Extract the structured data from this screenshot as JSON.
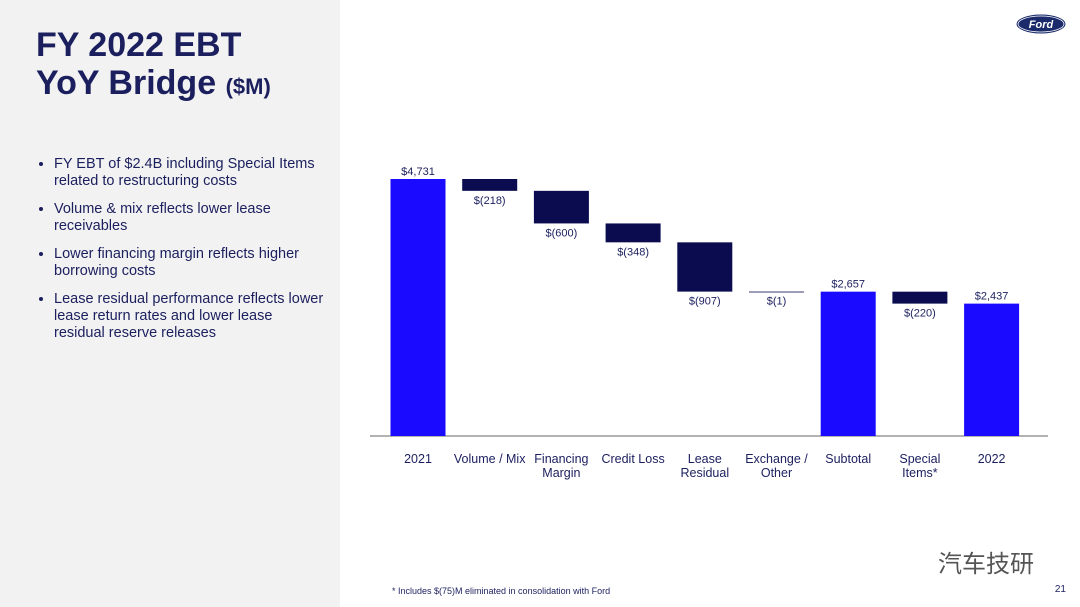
{
  "header": {
    "title": "FY 2022 EBT YoY Bridge",
    "title_unit": "($M)",
    "logo": "Ford",
    "page_number": "21"
  },
  "bullets": [
    "FY EBT of $2.4B including Special Items related to restructuring costs",
    "Volume & mix reflects lower lease receivables",
    "Lower financing margin reflects higher borrowing costs",
    "Lease residual performance reflects lower lease return rates and lower lease residual reserve releases"
  ],
  "chart_data": {
    "type": "waterfall",
    "categories": [
      "2021",
      "Volume / Mix",
      "Financing Margin",
      "Credit Loss",
      "Lease Residual",
      "Exchange / Other",
      "Subtotal",
      "Special Items*",
      "2022"
    ],
    "values": [
      4731,
      -218,
      -600,
      -348,
      -907,
      -1,
      2657,
      -220,
      2437
    ],
    "value_labels": [
      "$4,731",
      "$(218)",
      "$(600)",
      "$(348)",
      "$(907)",
      "$(1)",
      "$2,657",
      "$(220)",
      "$2,437"
    ],
    "is_total": [
      true,
      false,
      false,
      false,
      false,
      false,
      true,
      false,
      true
    ],
    "total_color": "#1a0aff",
    "delta_color": "#0b0c50"
  },
  "footnote": "* Includes $(75)M eliminated in consolidation with Ford",
  "watermark": "汽车技研"
}
